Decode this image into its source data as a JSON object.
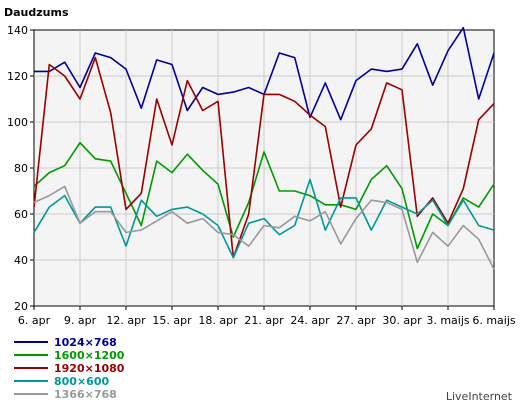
{
  "chart_data": {
    "type": "line",
    "title": "Daudzums",
    "ylim": [
      20,
      140
    ],
    "yticks": [
      20,
      40,
      60,
      80,
      100,
      120,
      140
    ],
    "grid": true,
    "legend_position": "bottom-left",
    "x_tick_labels": [
      "6. apr",
      "9. apr",
      "12. apr",
      "15. apr",
      "18. apr",
      "21. apr",
      "24. apr",
      "27. apr",
      "30. apr",
      "3. maijs",
      "6. maijs"
    ],
    "x": [
      "6. apr",
      "7. apr",
      "8. apr",
      "9. apr",
      "10. apr",
      "11. apr",
      "12. apr",
      "13. apr",
      "14. apr",
      "15. apr",
      "16. apr",
      "17. apr",
      "18. apr",
      "19. apr",
      "20. apr",
      "21. apr",
      "22. apr",
      "23. apr",
      "24. apr",
      "25. apr",
      "26. apr",
      "27. apr",
      "28. apr",
      "29. apr",
      "30. apr",
      "1. maijs",
      "2. maijs",
      "3. maijs",
      "4. maijs",
      "5. maijs",
      "6. maijs"
    ],
    "series": [
      {
        "name": "1024×768",
        "color": "#000099",
        "values": [
          122,
          122,
          126,
          115,
          130,
          128,
          123,
          106,
          127,
          125,
          105,
          115,
          112,
          113,
          115,
          112,
          130,
          128,
          102,
          117,
          101,
          118,
          123,
          122,
          123,
          134,
          116,
          131,
          141,
          110,
          130
        ]
      },
      {
        "name": "1600×1200",
        "color": "#009900",
        "values": [
          72,
          78,
          81,
          91,
          84,
          83,
          69,
          55,
          83,
          78,
          86,
          79,
          73,
          50,
          65,
          87,
          70,
          70,
          68,
          64,
          64,
          62,
          75,
          81,
          71,
          45,
          60,
          55,
          67,
          63,
          73
        ]
      },
      {
        "name": "1920×1080",
        "color": "#990000",
        "values": [
          63,
          125,
          120,
          110,
          128,
          104,
          62,
          69,
          110,
          90,
          118,
          105,
          109,
          41,
          60,
          112,
          112,
          109,
          103,
          98,
          63,
          90,
          97,
          117,
          114,
          59,
          67,
          56,
          71,
          101,
          108
        ]
      },
      {
        "name": "800×600",
        "color": "#009999",
        "values": [
          52,
          63,
          68,
          56,
          63,
          63,
          46,
          66,
          59,
          62,
          63,
          60,
          55,
          41,
          56,
          58,
          51,
          55,
          75,
          53,
          67,
          67,
          53,
          66,
          63,
          60,
          66,
          55,
          66,
          55,
          53
        ]
      },
      {
        "name": "1366×768",
        "color": "#999999",
        "values": [
          65,
          68,
          72,
          56,
          61,
          61,
          52,
          53,
          57,
          61,
          56,
          58,
          52,
          51,
          46,
          55,
          54,
          59,
          57,
          61,
          47,
          58,
          66,
          65,
          62,
          39,
          52,
          46,
          55,
          49,
          36
        ]
      }
    ]
  },
  "branding": "LiveInternet"
}
